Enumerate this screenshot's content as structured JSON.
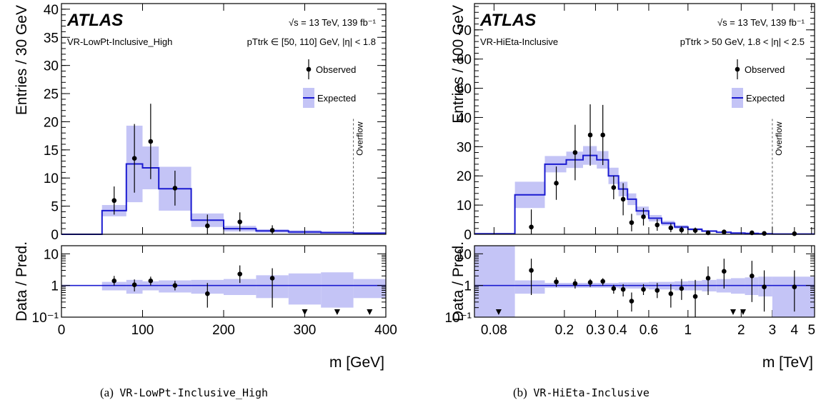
{
  "colors": {
    "expected_line": "#1b1bd0",
    "band": "#c4c4f6",
    "observed": "#000000",
    "overflow_line": "#555555"
  },
  "chart_data": [
    {
      "type": "histogram",
      "experiment": "ATLAS",
      "energy_lumi": "√s = 13 TeV,  139 fb⁻¹",
      "region": "VR-LowPt-Inclusive_High",
      "selection": "pTtrk ∈ [50, 110] GeV, |η| < 1.8",
      "ylabel": "Entries / 30 GeV",
      "ratio_ylabel": "Data / Pred.",
      "xlabel": "m [GeV]",
      "overflow_label": "Overflow",
      "legend": {
        "observed": "Observed",
        "expected": "Expected",
        "position": "top-right"
      },
      "x_scale": "linear",
      "xlim": [
        0,
        400
      ],
      "ylim": [
        0,
        41
      ],
      "x_ticks": [
        0,
        100,
        200,
        300,
        400
      ],
      "x_tick_labels": [
        "0",
        "100",
        "200",
        "300",
        "400"
      ],
      "y_ticks": [
        0,
        5,
        10,
        15,
        20,
        25,
        30,
        35,
        40
      ],
      "y_tick_labels": [
        "0",
        "5",
        "10",
        "15",
        "20",
        "25",
        "30",
        "35",
        "40"
      ],
      "ratio_ticks": [
        0.1,
        1,
        10
      ],
      "ratio_tick_labels": [
        "10⁻¹",
        "1",
        "10"
      ],
      "ratio_ylim": [
        0.1,
        18
      ],
      "overflow_x": 360,
      "expected_bins": [
        {
          "lo": 0,
          "hi": 50,
          "value": 0,
          "err": 0
        },
        {
          "lo": 50,
          "hi": 80,
          "value": 4.2,
          "err": 1.0
        },
        {
          "lo": 80,
          "hi": 100,
          "value": 12.5,
          "err": 6.8
        },
        {
          "lo": 100,
          "hi": 120,
          "value": 11.8,
          "err": 3.8
        },
        {
          "lo": 120,
          "hi": 160,
          "value": 8.1,
          "err": 3.9
        },
        {
          "lo": 160,
          "hi": 200,
          "value": 2.5,
          "err": 1.2
        },
        {
          "lo": 200,
          "hi": 240,
          "value": 1.0,
          "err": 0.5
        },
        {
          "lo": 240,
          "hi": 280,
          "value": 0.6,
          "err": 0.3
        },
        {
          "lo": 280,
          "hi": 320,
          "value": 0.4,
          "err": 0.3
        },
        {
          "lo": 320,
          "hi": 360,
          "value": 0.3,
          "err": 0.2
        },
        {
          "lo": 360,
          "hi": 400,
          "value": 0.2,
          "err": 0.1
        }
      ],
      "observed": [
        {
          "x": 65,
          "y": 6.0,
          "yerr": 2.5
        },
        {
          "x": 90,
          "y": 13.5,
          "yerr": 6.1
        },
        {
          "x": 110,
          "y": 16.5,
          "yerr": 6.7
        },
        {
          "x": 140,
          "y": 8.2,
          "yerr": 3.1
        },
        {
          "x": 180,
          "y": 1.5,
          "yerr": 2.0
        },
        {
          "x": 220,
          "y": 2.2,
          "yerr": 1.7
        },
        {
          "x": 260,
          "y": 0.7,
          "yerr": 0.9
        }
      ],
      "ratio_points": [
        {
          "x": 65,
          "y": 1.4,
          "lo": 1.0,
          "hi": 2.0
        },
        {
          "x": 90,
          "y": 1.05,
          "lo": 0.65,
          "hi": 1.55
        },
        {
          "x": 110,
          "y": 1.4,
          "lo": 1.0,
          "hi": 1.9
        },
        {
          "x": 140,
          "y": 1.0,
          "lo": 0.7,
          "hi": 1.4
        },
        {
          "x": 180,
          "y": 0.55,
          "lo": 0.2,
          "hi": 1.2
        },
        {
          "x": 220,
          "y": 2.3,
          "lo": 1.2,
          "hi": 4.3
        },
        {
          "x": 260,
          "y": 1.7,
          "lo": 0.2,
          "hi": 3.5
        }
      ],
      "ratio_bands": [
        {
          "lo": 50,
          "hi": 80,
          "down": 0.7,
          "up": 1.3
        },
        {
          "lo": 80,
          "hi": 100,
          "down": 0.55,
          "up": 1.5
        },
        {
          "lo": 100,
          "hi": 120,
          "down": 0.7,
          "up": 1.35
        },
        {
          "lo": 120,
          "hi": 160,
          "down": 0.6,
          "up": 1.45
        },
        {
          "lo": 160,
          "hi": 200,
          "down": 0.55,
          "up": 1.5
        },
        {
          "lo": 200,
          "hi": 240,
          "down": 0.5,
          "up": 1.6
        },
        {
          "lo": 240,
          "hi": 280,
          "down": 0.4,
          "up": 2.1
        },
        {
          "lo": 280,
          "hi": 320,
          "down": 0.25,
          "up": 2.4
        },
        {
          "lo": 320,
          "hi": 360,
          "down": 0.2,
          "up": 2.6
        },
        {
          "lo": 360,
          "hi": 400,
          "down": 0.4,
          "up": 1.6
        }
      ],
      "ratio_arrows": [
        300,
        340,
        380
      ]
    },
    {
      "type": "histogram",
      "experiment": "ATLAS",
      "energy_lumi": "√s = 13 TeV,  139 fb⁻¹",
      "region": "VR-HiEta-Inclusive",
      "selection": "pTtrk > 50 GeV, 1.8 < |η| < 2.5",
      "ylabel": "Entries / 100 GeV",
      "ratio_ylabel": "Data / Pred.",
      "xlabel": "m [TeV]",
      "overflow_label": "Overflow",
      "legend": {
        "observed": "Observed",
        "expected": "Expected",
        "position": "top-right"
      },
      "x_scale": "log",
      "xlim": [
        0.062,
        5.2
      ],
      "ylim": [
        0,
        79
      ],
      "x_ticks": [
        0.08,
        0.2,
        0.3,
        0.4,
        0.6,
        1,
        2,
        3,
        4,
        5
      ],
      "x_tick_labels": [
        "0.08",
        "0.2",
        "0.3",
        "0.4",
        "0.6",
        "1",
        "2",
        "3",
        "4",
        "5"
      ],
      "y_ticks": [
        0,
        10,
        20,
        30,
        40,
        50,
        60,
        70
      ],
      "y_tick_labels": [
        "0",
        "10",
        "20",
        "30",
        "40",
        "50",
        "60",
        "70"
      ],
      "ratio_ticks": [
        0.1,
        1,
        10
      ],
      "ratio_tick_labels": [
        "10⁻¹",
        "1",
        "10"
      ],
      "ratio_ylim": [
        0.1,
        18
      ],
      "overflow_x": 3.0,
      "expected_bins": [
        {
          "lo": 0.062,
          "hi": 0.105,
          "value": 0.2,
          "err": 0.2
        },
        {
          "lo": 0.105,
          "hi": 0.155,
          "value": 13.5,
          "err": 4.5
        },
        {
          "lo": 0.155,
          "hi": 0.205,
          "value": 24.0,
          "err": 2.8
        },
        {
          "lo": 0.205,
          "hi": 0.255,
          "value": 25.5,
          "err": 2.8
        },
        {
          "lo": 0.255,
          "hi": 0.305,
          "value": 27.0,
          "err": 3.2
        },
        {
          "lo": 0.305,
          "hi": 0.355,
          "value": 25.5,
          "err": 3.0
        },
        {
          "lo": 0.355,
          "hi": 0.405,
          "value": 20.0,
          "err": 2.8
        },
        {
          "lo": 0.405,
          "hi": 0.455,
          "value": 15.5,
          "err": 2.5
        },
        {
          "lo": 0.455,
          "hi": 0.51,
          "value": 12.0,
          "err": 2.0
        },
        {
          "lo": 0.51,
          "hi": 0.6,
          "value": 8.0,
          "err": 1.5
        },
        {
          "lo": 0.6,
          "hi": 0.71,
          "value": 5.5,
          "err": 1.1
        },
        {
          "lo": 0.71,
          "hi": 0.84,
          "value": 3.8,
          "err": 0.8
        },
        {
          "lo": 0.84,
          "hi": 1.0,
          "value": 2.5,
          "err": 0.6
        },
        {
          "lo": 1.0,
          "hi": 1.2,
          "value": 1.7,
          "err": 0.4
        },
        {
          "lo": 1.2,
          "hi": 1.45,
          "value": 1.1,
          "err": 0.3
        },
        {
          "lo": 1.45,
          "hi": 1.75,
          "value": 0.7,
          "err": 0.2
        },
        {
          "lo": 1.75,
          "hi": 2.1,
          "value": 0.45,
          "err": 0.15
        },
        {
          "lo": 2.1,
          "hi": 2.5,
          "value": 0.3,
          "err": 0.1
        },
        {
          "lo": 2.5,
          "hi": 3.0,
          "value": 0.2,
          "err": 0.1
        },
        {
          "lo": 3.0,
          "hi": 5.2,
          "value": 0.1,
          "err": 0.1
        }
      ],
      "observed": [
        {
          "x": 0.13,
          "y": 2.5,
          "yerr": 6.0
        },
        {
          "x": 0.18,
          "y": 17.5,
          "yerr": 5.7
        },
        {
          "x": 0.23,
          "y": 28.0,
          "yerr": 9.5
        },
        {
          "x": 0.28,
          "y": 34.0,
          "yerr": 10.5
        },
        {
          "x": 0.33,
          "y": 34.0,
          "yerr": 10.3
        },
        {
          "x": 0.38,
          "y": 16.0,
          "yerr": 4.0
        },
        {
          "x": 0.43,
          "y": 12.0,
          "yerr": 5.5
        },
        {
          "x": 0.48,
          "y": 4.0,
          "yerr": 3.0
        },
        {
          "x": 0.56,
          "y": 6.0,
          "yerr": 3.0
        },
        {
          "x": 0.67,
          "y": 3.2,
          "yerr": 2.0
        },
        {
          "x": 0.8,
          "y": 2.2,
          "yerr": 1.5
        },
        {
          "x": 0.92,
          "y": 1.5,
          "yerr": 1.2
        },
        {
          "x": 1.1,
          "y": 1.3,
          "yerr": 1.0
        },
        {
          "x": 1.3,
          "y": 0.5,
          "yerr": 0.7
        },
        {
          "x": 1.6,
          "y": 0.8,
          "yerr": 0.8
        },
        {
          "x": 2.3,
          "y": 0.5,
          "yerr": 0.6
        },
        {
          "x": 2.7,
          "y": 0.3,
          "yerr": 0.5
        },
        {
          "x": 4.0,
          "y": 0.2,
          "yerr": 0.4
        }
      ],
      "ratio_points": [
        {
          "x": 0.13,
          "y": 3.0,
          "lo": 0.5,
          "hi": 7.0
        },
        {
          "x": 0.18,
          "y": 1.3,
          "lo": 0.9,
          "hi": 1.8
        },
        {
          "x": 0.23,
          "y": 1.15,
          "lo": 0.8,
          "hi": 1.6
        },
        {
          "x": 0.28,
          "y": 1.25,
          "lo": 0.9,
          "hi": 1.6
        },
        {
          "x": 0.33,
          "y": 1.35,
          "lo": 1.0,
          "hi": 1.7
        },
        {
          "x": 0.38,
          "y": 0.8,
          "lo": 0.55,
          "hi": 1.05
        },
        {
          "x": 0.43,
          "y": 0.75,
          "lo": 0.45,
          "hi": 1.1
        },
        {
          "x": 0.48,
          "y": 0.32,
          "lo": 0.15,
          "hi": 0.6
        },
        {
          "x": 0.56,
          "y": 0.75,
          "lo": 0.5,
          "hi": 1.1
        },
        {
          "x": 0.67,
          "y": 0.7,
          "lo": 0.4,
          "hi": 1.2
        },
        {
          "x": 0.8,
          "y": 0.55,
          "lo": 0.2,
          "hi": 1.1
        },
        {
          "x": 0.92,
          "y": 0.8,
          "lo": 0.35,
          "hi": 1.6
        },
        {
          "x": 1.1,
          "y": 0.45,
          "lo": 0.1,
          "hi": 1.5
        },
        {
          "x": 1.3,
          "y": 1.7,
          "lo": 0.5,
          "hi": 4.0
        },
        {
          "x": 1.6,
          "y": 2.8,
          "lo": 0.8,
          "hi": 7.0
        },
        {
          "x": 2.3,
          "y": 2.0,
          "lo": 0.3,
          "hi": 6.0
        },
        {
          "x": 2.7,
          "y": 0.9,
          "lo": 0.15,
          "hi": 3.0
        },
        {
          "x": 4.0,
          "y": 0.9,
          "lo": 0.15,
          "hi": 3.0
        }
      ],
      "ratio_bands": [
        {
          "lo": 0.062,
          "hi": 0.105,
          "down": 0.1,
          "up": 18
        },
        {
          "lo": 0.105,
          "hi": 0.155,
          "down": 0.55,
          "up": 1.45
        },
        {
          "lo": 0.155,
          "hi": 0.205,
          "down": 0.85,
          "up": 1.2
        },
        {
          "lo": 0.205,
          "hi": 0.255,
          "down": 0.85,
          "up": 1.2
        },
        {
          "lo": 0.255,
          "hi": 0.305,
          "down": 0.85,
          "up": 1.2
        },
        {
          "lo": 0.305,
          "hi": 0.355,
          "down": 0.85,
          "up": 1.2
        },
        {
          "lo": 0.355,
          "hi": 0.405,
          "down": 0.85,
          "up": 1.2
        },
        {
          "lo": 0.405,
          "hi": 0.455,
          "down": 0.8,
          "up": 1.25
        },
        {
          "lo": 0.455,
          "hi": 0.51,
          "down": 0.8,
          "up": 1.25
        },
        {
          "lo": 0.51,
          "hi": 0.6,
          "down": 0.8,
          "up": 1.25
        },
        {
          "lo": 0.6,
          "hi": 0.71,
          "down": 0.75,
          "up": 1.3
        },
        {
          "lo": 0.71,
          "hi": 0.84,
          "down": 0.75,
          "up": 1.3
        },
        {
          "lo": 0.84,
          "hi": 1.0,
          "down": 0.7,
          "up": 1.35
        },
        {
          "lo": 1.0,
          "hi": 1.2,
          "down": 0.7,
          "up": 1.4
        },
        {
          "lo": 1.2,
          "hi": 1.45,
          "down": 0.65,
          "up": 1.5
        },
        {
          "lo": 1.45,
          "hi": 1.75,
          "down": 0.6,
          "up": 1.6
        },
        {
          "lo": 1.75,
          "hi": 2.1,
          "down": 0.55,
          "up": 1.7
        },
        {
          "lo": 2.1,
          "hi": 2.5,
          "down": 0.5,
          "up": 1.8
        },
        {
          "lo": 2.5,
          "hi": 3.0,
          "down": 0.45,
          "up": 1.9
        },
        {
          "lo": 3.0,
          "hi": 5.2,
          "down": 0.1,
          "up": 1.9
        }
      ],
      "ratio_arrows": [
        0.085,
        1.8,
        2.05
      ]
    }
  ],
  "captions": [
    {
      "label": "(a)",
      "name": "VR-LowPt-Inclusive_High"
    },
    {
      "label": "(b)",
      "name": "VR-HiEta-Inclusive"
    }
  ]
}
